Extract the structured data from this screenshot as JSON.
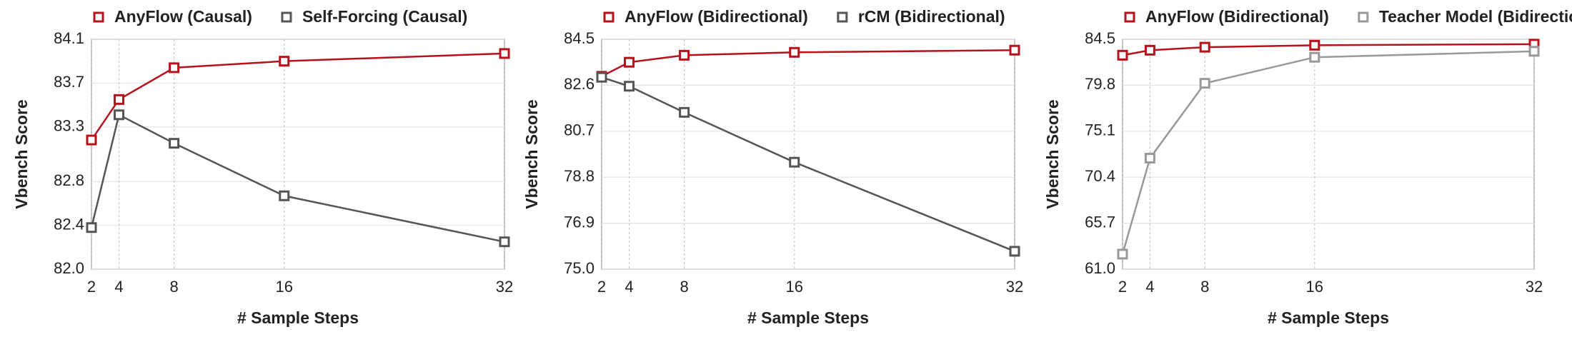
{
  "chart_data": [
    {
      "type": "line",
      "xlabel": "# Sample Steps",
      "ylabel": "Vbench Score",
      "x": [
        2,
        4,
        8,
        16,
        32
      ],
      "xlim": [
        2,
        32
      ],
      "xticks": [
        2,
        4,
        8,
        16,
        32
      ],
      "ylim": [
        82.0,
        84.1
      ],
      "yticks": [
        {
          "value": 82.0,
          "label": "82.0"
        },
        82.4,
        82.8,
        83.3,
        83.7,
        84.1
      ],
      "grid": true,
      "legend": "top",
      "series": [
        {
          "name": "AnyFlow (Causal)",
          "color": "#b5121b",
          "values": [
            83.18,
            83.55,
            83.84,
            83.9,
            83.97
          ]
        },
        {
          "name": "Self-Forcing (Causal)",
          "color": "#555555",
          "values": [
            82.38,
            83.41,
            83.15,
            82.67,
            82.25
          ]
        }
      ]
    },
    {
      "type": "line",
      "xlabel": "# Sample Steps",
      "ylabel": "Vbench Score",
      "x": [
        2,
        4,
        8,
        16,
        32
      ],
      "xlim": [
        2,
        32
      ],
      "xticks": [
        2,
        4,
        8,
        16,
        32
      ],
      "ylim": [
        75.0,
        84.5
      ],
      "yticks": [
        {
          "value": 75.0,
          "label": "75.0"
        },
        76.9,
        78.8,
        80.7,
        82.6,
        84.5
      ],
      "grid": true,
      "legend": "top",
      "series": [
        {
          "name": "AnyFlow (Bidirectional)",
          "color": "#b5121b",
          "values": [
            82.97,
            83.55,
            83.84,
            83.96,
            84.05
          ]
        },
        {
          "name": "rCM (Bidirectional)",
          "color": "#555555",
          "values": [
            82.93,
            82.56,
            81.48,
            79.42,
            75.74
          ]
        }
      ]
    },
    {
      "type": "line",
      "xlabel": "# Sample Steps",
      "ylabel": "Vbench Score",
      "x": [
        2,
        4,
        8,
        16,
        32
      ],
      "xlim": [
        2,
        32
      ],
      "xticks": [
        2,
        4,
        8,
        16,
        32
      ],
      "ylim": [
        61.0,
        84.5
      ],
      "yticks": [
        {
          "value": 61.0,
          "label": "61.0"
        },
        65.7,
        70.4,
        75.1,
        79.8,
        84.5
      ],
      "grid": true,
      "legend": "top",
      "series": [
        {
          "name": "AnyFlow (Bidirectional)",
          "color": "#b5121b",
          "values": [
            82.87,
            83.38,
            83.69,
            83.89,
            84.0
          ]
        },
        {
          "name": "Teacher Model (Bidirectional)",
          "color": "#999999",
          "values": [
            62.54,
            72.35,
            80.0,
            82.66,
            83.27
          ]
        }
      ]
    }
  ]
}
